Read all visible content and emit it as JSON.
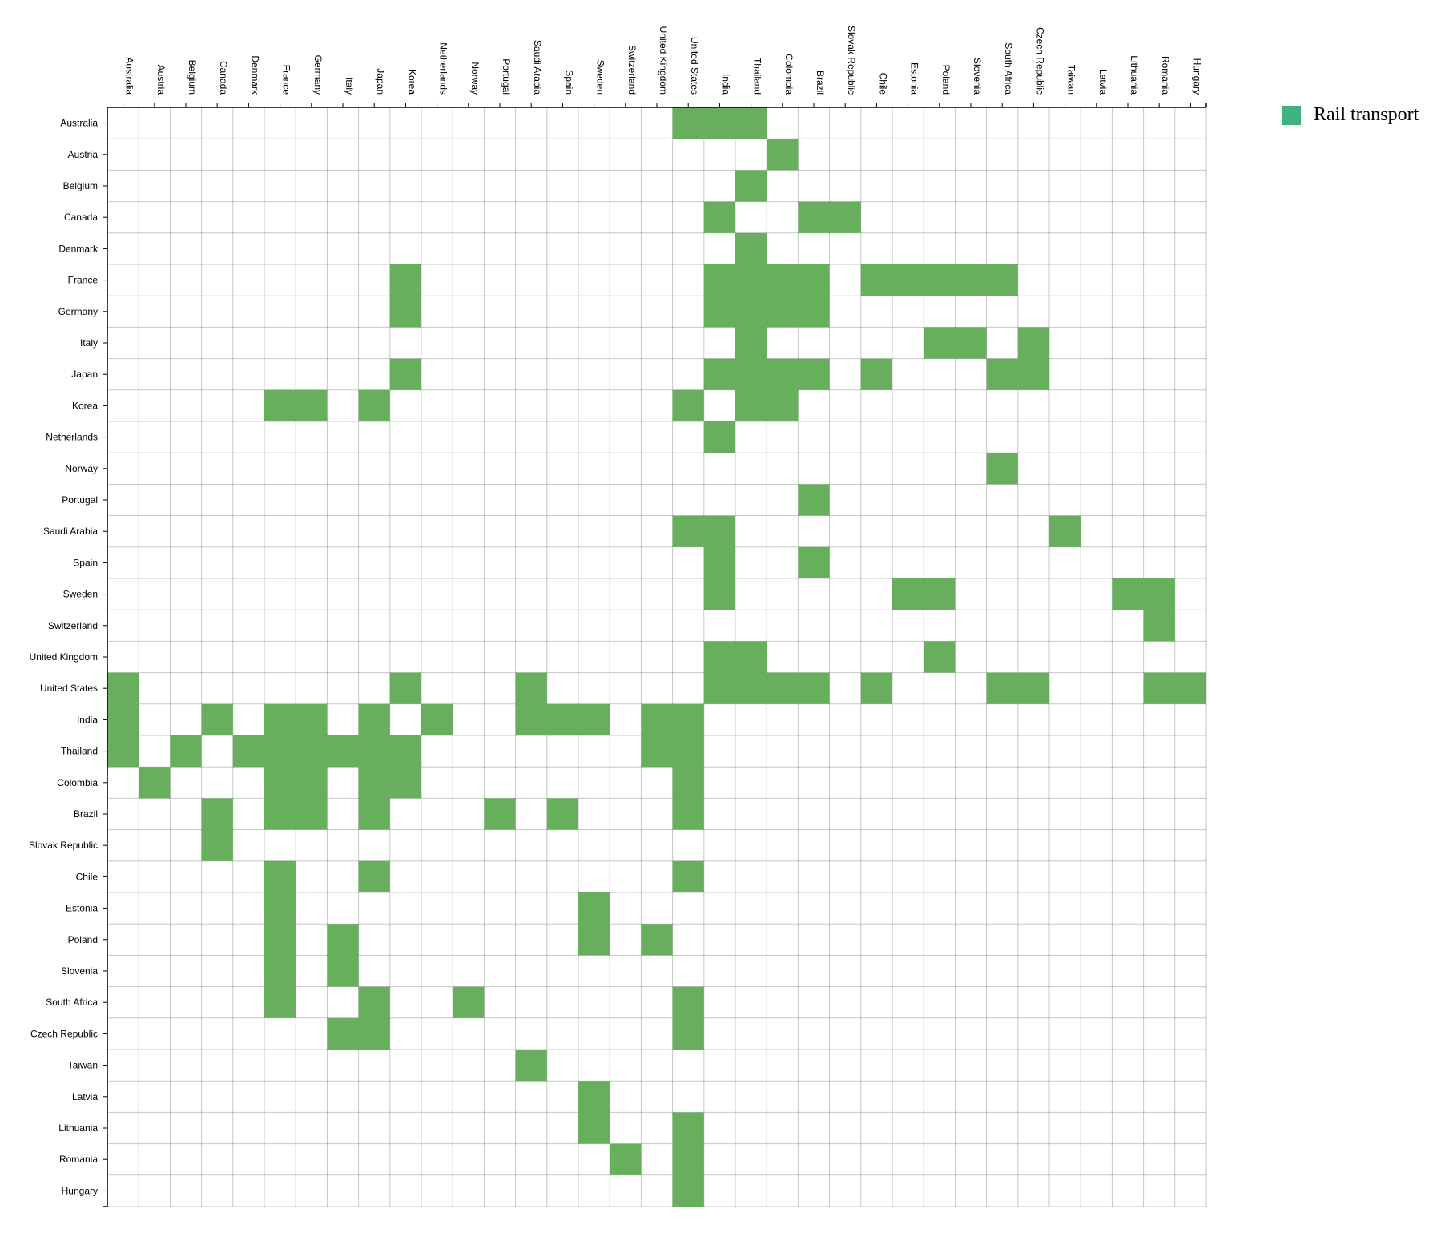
{
  "chart_data": {
    "type": "heatmap",
    "x_categories": [
      "Australia",
      "Austria",
      "Belgium",
      "Canada",
      "Denmark",
      "France",
      "Germany",
      "Italy",
      "Japan",
      "Korea",
      "Netherlands",
      "Norway",
      "Portugal",
      "Saudi Arabia",
      "Spain",
      "Sweden",
      "Switzerland",
      "United Kingdom",
      "United States",
      "India",
      "Thailand",
      "Colombia",
      "Brazil",
      "Slovak Republic",
      "Chile",
      "Estonia",
      "Poland",
      "Slovenia",
      "South Africa",
      "Czech Republic",
      "Taiwan",
      "Latvia",
      "Lithuania",
      "Romania",
      "Hungary"
    ],
    "y_categories": [
      "Australia",
      "Austria",
      "Belgium",
      "Canada",
      "Denmark",
      "France",
      "Germany",
      "Italy",
      "Japan",
      "Korea",
      "Netherlands",
      "Norway",
      "Portugal",
      "Saudi Arabia",
      "Spain",
      "Sweden",
      "Switzerland",
      "United Kingdom",
      "United States",
      "India",
      "Thailand",
      "Colombia",
      "Brazil",
      "Slovak Republic",
      "Chile",
      "Estonia",
      "Poland",
      "Slovenia",
      "South Africa",
      "Czech Republic",
      "Taiwan",
      "Latvia",
      "Lithuania",
      "Romania",
      "Hungary"
    ],
    "cells": [
      {
        "x": "United States",
        "y": "Australia"
      },
      {
        "x": "India",
        "y": "Australia"
      },
      {
        "x": "Thailand",
        "y": "Australia"
      },
      {
        "x": "Colombia",
        "y": "Austria"
      },
      {
        "x": "Thailand",
        "y": "Belgium"
      },
      {
        "x": "India",
        "y": "Canada"
      },
      {
        "x": "Brazil",
        "y": "Canada"
      },
      {
        "x": "Slovak Republic",
        "y": "Canada"
      },
      {
        "x": "Thailand",
        "y": "Denmark"
      },
      {
        "x": "Korea",
        "y": "France"
      },
      {
        "x": "India",
        "y": "France"
      },
      {
        "x": "Thailand",
        "y": "France"
      },
      {
        "x": "Colombia",
        "y": "France"
      },
      {
        "x": "Brazil",
        "y": "France"
      },
      {
        "x": "Chile",
        "y": "France"
      },
      {
        "x": "Estonia",
        "y": "France"
      },
      {
        "x": "Poland",
        "y": "France"
      },
      {
        "x": "Slovenia",
        "y": "France"
      },
      {
        "x": "South Africa",
        "y": "France"
      },
      {
        "x": "Korea",
        "y": "Germany"
      },
      {
        "x": "India",
        "y": "Germany"
      },
      {
        "x": "Thailand",
        "y": "Germany"
      },
      {
        "x": "Colombia",
        "y": "Germany"
      },
      {
        "x": "Brazil",
        "y": "Germany"
      },
      {
        "x": "Thailand",
        "y": "Italy"
      },
      {
        "x": "Poland",
        "y": "Italy"
      },
      {
        "x": "Slovenia",
        "y": "Italy"
      },
      {
        "x": "Czech Republic",
        "y": "Italy"
      },
      {
        "x": "Korea",
        "y": "Japan"
      },
      {
        "x": "India",
        "y": "Japan"
      },
      {
        "x": "Thailand",
        "y": "Japan"
      },
      {
        "x": "Colombia",
        "y": "Japan"
      },
      {
        "x": "Brazil",
        "y": "Japan"
      },
      {
        "x": "Chile",
        "y": "Japan"
      },
      {
        "x": "South Africa",
        "y": "Japan"
      },
      {
        "x": "Czech Republic",
        "y": "Japan"
      },
      {
        "x": "France",
        "y": "Korea"
      },
      {
        "x": "Germany",
        "y": "Korea"
      },
      {
        "x": "Japan",
        "y": "Korea"
      },
      {
        "x": "United States",
        "y": "Korea"
      },
      {
        "x": "Thailand",
        "y": "Korea"
      },
      {
        "x": "Colombia",
        "y": "Korea"
      },
      {
        "x": "India",
        "y": "Netherlands"
      },
      {
        "x": "South Africa",
        "y": "Norway"
      },
      {
        "x": "Brazil",
        "y": "Portugal"
      },
      {
        "x": "United States",
        "y": "Saudi Arabia"
      },
      {
        "x": "India",
        "y": "Saudi Arabia"
      },
      {
        "x": "Taiwan",
        "y": "Saudi Arabia"
      },
      {
        "x": "India",
        "y": "Spain"
      },
      {
        "x": "Brazil",
        "y": "Spain"
      },
      {
        "x": "India",
        "y": "Sweden"
      },
      {
        "x": "Estonia",
        "y": "Sweden"
      },
      {
        "x": "Poland",
        "y": "Sweden"
      },
      {
        "x": "Lithuania",
        "y": "Sweden"
      },
      {
        "x": "Romania",
        "y": "Sweden"
      },
      {
        "x": "Romania",
        "y": "Switzerland"
      },
      {
        "x": "India",
        "y": "United Kingdom"
      },
      {
        "x": "Thailand",
        "y": "United Kingdom"
      },
      {
        "x": "Poland",
        "y": "United Kingdom"
      },
      {
        "x": "Australia",
        "y": "United States"
      },
      {
        "x": "Korea",
        "y": "United States"
      },
      {
        "x": "Saudi Arabia",
        "y": "United States"
      },
      {
        "x": "India",
        "y": "United States"
      },
      {
        "x": "Thailand",
        "y": "United States"
      },
      {
        "x": "Colombia",
        "y": "United States"
      },
      {
        "x": "Brazil",
        "y": "United States"
      },
      {
        "x": "Chile",
        "y": "United States"
      },
      {
        "x": "South Africa",
        "y": "United States"
      },
      {
        "x": "Czech Republic",
        "y": "United States"
      },
      {
        "x": "Romania",
        "y": "United States"
      },
      {
        "x": "Hungary",
        "y": "United States"
      },
      {
        "x": "Australia",
        "y": "India"
      },
      {
        "x": "Canada",
        "y": "India"
      },
      {
        "x": "France",
        "y": "India"
      },
      {
        "x": "Germany",
        "y": "India"
      },
      {
        "x": "Japan",
        "y": "India"
      },
      {
        "x": "Netherlands",
        "y": "India"
      },
      {
        "x": "Saudi Arabia",
        "y": "India"
      },
      {
        "x": "Spain",
        "y": "India"
      },
      {
        "x": "Sweden",
        "y": "India"
      },
      {
        "x": "United Kingdom",
        "y": "India"
      },
      {
        "x": "United States",
        "y": "India"
      },
      {
        "x": "Australia",
        "y": "Thailand"
      },
      {
        "x": "Belgium",
        "y": "Thailand"
      },
      {
        "x": "Denmark",
        "y": "Thailand"
      },
      {
        "x": "France",
        "y": "Thailand"
      },
      {
        "x": "Germany",
        "y": "Thailand"
      },
      {
        "x": "Italy",
        "y": "Thailand"
      },
      {
        "x": "Japan",
        "y": "Thailand"
      },
      {
        "x": "Korea",
        "y": "Thailand"
      },
      {
        "x": "United Kingdom",
        "y": "Thailand"
      },
      {
        "x": "United States",
        "y": "Thailand"
      },
      {
        "x": "Austria",
        "y": "Colombia"
      },
      {
        "x": "France",
        "y": "Colombia"
      },
      {
        "x": "Germany",
        "y": "Colombia"
      },
      {
        "x": "Japan",
        "y": "Colombia"
      },
      {
        "x": "Korea",
        "y": "Colombia"
      },
      {
        "x": "United States",
        "y": "Colombia"
      },
      {
        "x": "Canada",
        "y": "Brazil"
      },
      {
        "x": "France",
        "y": "Brazil"
      },
      {
        "x": "Germany",
        "y": "Brazil"
      },
      {
        "x": "Japan",
        "y": "Brazil"
      },
      {
        "x": "Portugal",
        "y": "Brazil"
      },
      {
        "x": "Spain",
        "y": "Brazil"
      },
      {
        "x": "United States",
        "y": "Brazil"
      },
      {
        "x": "Canada",
        "y": "Slovak Republic"
      },
      {
        "x": "France",
        "y": "Chile"
      },
      {
        "x": "Japan",
        "y": "Chile"
      },
      {
        "x": "United States",
        "y": "Chile"
      },
      {
        "x": "France",
        "y": "Estonia"
      },
      {
        "x": "Sweden",
        "y": "Estonia"
      },
      {
        "x": "France",
        "y": "Poland"
      },
      {
        "x": "Italy",
        "y": "Poland"
      },
      {
        "x": "Sweden",
        "y": "Poland"
      },
      {
        "x": "United Kingdom",
        "y": "Poland"
      },
      {
        "x": "France",
        "y": "Slovenia"
      },
      {
        "x": "Italy",
        "y": "Slovenia"
      },
      {
        "x": "France",
        "y": "South Africa"
      },
      {
        "x": "Japan",
        "y": "South Africa"
      },
      {
        "x": "Norway",
        "y": "South Africa"
      },
      {
        "x": "United States",
        "y": "South Africa"
      },
      {
        "x": "Italy",
        "y": "Czech Republic"
      },
      {
        "x": "Japan",
        "y": "Czech Republic"
      },
      {
        "x": "United States",
        "y": "Czech Republic"
      },
      {
        "x": "Saudi Arabia",
        "y": "Taiwan"
      },
      {
        "x": "Sweden",
        "y": "Latvia"
      },
      {
        "x": "Sweden",
        "y": "Lithuania"
      },
      {
        "x": "United States",
        "y": "Lithuania"
      },
      {
        "x": "Switzerland",
        "y": "Romania"
      },
      {
        "x": "United States",
        "y": "Romania"
      },
      {
        "x": "United States",
        "y": "Hungary"
      }
    ],
    "legend": {
      "label": "Rail transport",
      "placement": "top-right"
    },
    "colors": {
      "cell_fill": "#5aa84f",
      "legend_swatch": "#3cb57d",
      "grid": "#000000",
      "axis": "#000000"
    },
    "grid": true
  }
}
